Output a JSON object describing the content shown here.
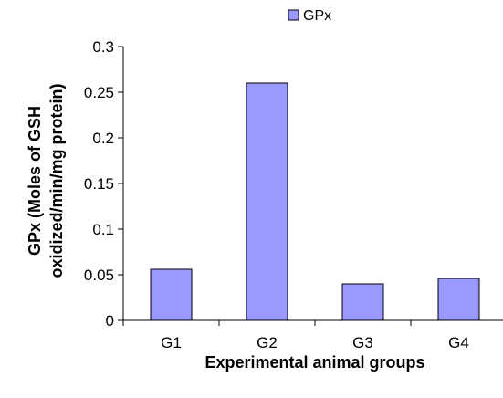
{
  "chart_data": {
    "type": "bar",
    "categories": [
      "G1",
      "G2",
      "G3",
      "G4"
    ],
    "series": [
      {
        "name": "GPx",
        "values": [
          0.056,
          0.26,
          0.04,
          0.046
        ]
      }
    ],
    "xlabel": "Experimental animal groups",
    "ylabel_lines": [
      "GPx (Moles of GSH",
      "oxidized/min/mg protein)"
    ],
    "ylim": [
      0,
      0.3
    ],
    "yticks": [
      {
        "value": 0,
        "label": "0"
      },
      {
        "value": 0.05,
        "label": "0.05"
      },
      {
        "value": 0.1,
        "label": "0.1"
      },
      {
        "value": 0.15,
        "label": "0.15"
      },
      {
        "value": 0.2,
        "label": "0.2"
      },
      {
        "value": 0.25,
        "label": "0.25"
      },
      {
        "value": 0.3,
        "label": "0.3"
      }
    ],
    "grid": false,
    "legend_position": "top-center",
    "colors": {
      "bar_fill": "#9999ff",
      "bar_stroke": "#000000",
      "axis": "#000000"
    }
  }
}
